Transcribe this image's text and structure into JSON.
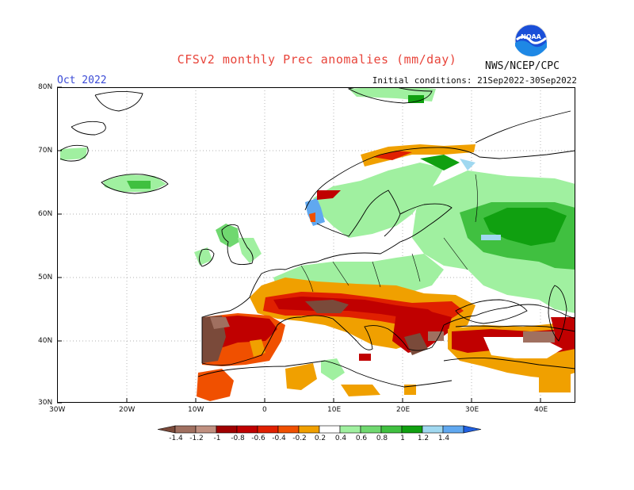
{
  "header": {
    "title": "CFSv2 monthly Prec anomalies (mm/day)",
    "period": "Oct 2022",
    "initial_conditions": "Initial conditions: 21Sep2022-30Sep2022",
    "agency": "NWS/NCEP/CPC",
    "logo_text": "NOAA"
  },
  "map": {
    "lat_labels": [
      "80N",
      "70N",
      "60N",
      "50N",
      "40N",
      "30N"
    ],
    "lon_labels": [
      "30W",
      "20W",
      "10W",
      "0",
      "10E",
      "20E",
      "30E",
      "40E"
    ],
    "extent": {
      "lon": [
        -30,
        45
      ],
      "lat": [
        30,
        80
      ]
    },
    "regions": [
      {
        "name": "iberia-dry",
        "level": -1.2
      },
      {
        "name": "france-dry",
        "level": -0.8
      },
      {
        "name": "balkans-dry",
        "level": -0.6
      },
      {
        "name": "turkey-dry",
        "level": -0.8
      },
      {
        "name": "north-africa-dry",
        "level": -0.4
      },
      {
        "name": "russia-wet",
        "level": 0.8
      },
      {
        "name": "central-europe-wet",
        "level": 0.2
      },
      {
        "name": "norway-wet",
        "level": 1.2
      }
    ]
  },
  "colorbar": {
    "labels": [
      "-1.4",
      "-1.2",
      "-1",
      "-0.8",
      "-0.6",
      "-0.4",
      "-0.2",
      "0.2",
      "0.4",
      "0.6",
      "0.8",
      "1",
      "1.2",
      "1.4"
    ],
    "colors": [
      "#7a4a3a",
      "#a07060",
      "#c09080",
      "#a00000",
      "#c00000",
      "#e02000",
      "#f05000",
      "#f0a000",
      "#ffffff",
      "#a0f0a0",
      "#70d870",
      "#40c040",
      "#10a010",
      "#a0d8f0",
      "#60a8f0",
      "#2060e0"
    ]
  },
  "colors": {
    "title": "#e8443a",
    "period": "#3b4bd6"
  }
}
